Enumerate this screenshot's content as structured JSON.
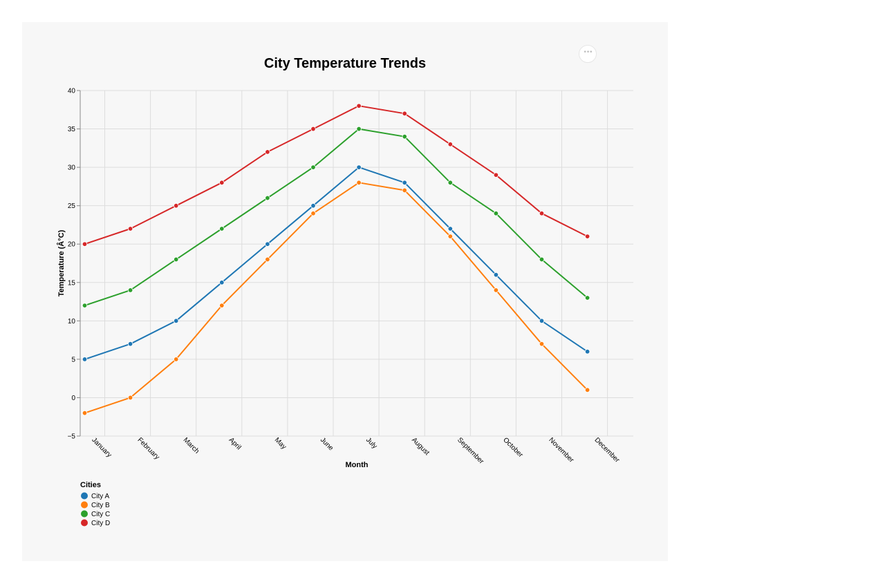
{
  "actions_menu": {
    "label": "•••",
    "icon": "more-horizontal-icon"
  },
  "chart_data": {
    "type": "line",
    "title": "City Temperature Trends",
    "xlabel": "Month",
    "ylabel": "Temperature (Â°C)",
    "categories": [
      "January",
      "February",
      "March",
      "April",
      "May",
      "June",
      "July",
      "August",
      "September",
      "October",
      "November",
      "December"
    ],
    "ylim": [
      -5,
      40
    ],
    "yticks": [
      -5,
      0,
      5,
      10,
      15,
      20,
      25,
      30,
      35,
      40
    ],
    "grid": true,
    "legend": {
      "title": "Cities",
      "position": "bottom-left"
    },
    "series": [
      {
        "name": "City A",
        "color": "#1f77b4",
        "values": [
          5,
          7,
          10,
          15,
          20,
          25,
          30,
          28,
          22,
          16,
          10,
          6
        ]
      },
      {
        "name": "City B",
        "color": "#ff7f0e",
        "values": [
          -2,
          0,
          5,
          12,
          18,
          24,
          28,
          27,
          21,
          14,
          7,
          1
        ]
      },
      {
        "name": "City C",
        "color": "#2ca02c",
        "values": [
          12,
          14,
          18,
          22,
          26,
          30,
          35,
          34,
          28,
          24,
          18,
          13
        ]
      },
      {
        "name": "City D",
        "color": "#d62728",
        "values": [
          20,
          22,
          25,
          28,
          32,
          35,
          38,
          37,
          33,
          29,
          24,
          21
        ]
      }
    ]
  }
}
